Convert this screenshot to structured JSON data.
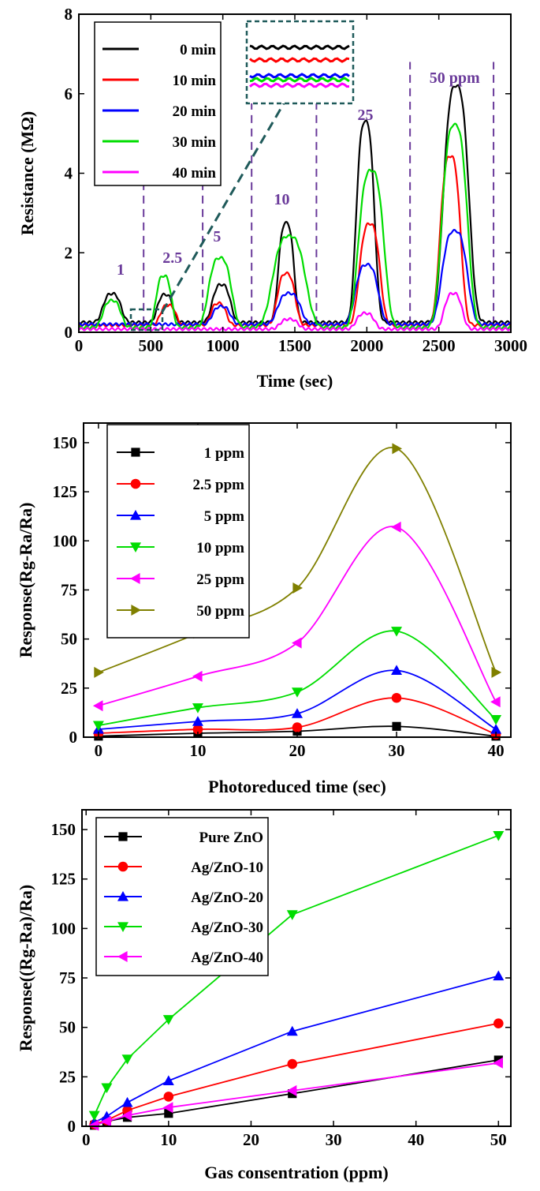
{
  "chart_data": [
    {
      "type": "line",
      "xlabel": "Time (sec)",
      "ylabel": "Resistance (MΩ)",
      "xlim": [
        0,
        3000
      ],
      "ylim": [
        0,
        8
      ],
      "xticks": [
        "0",
        "500",
        "1000",
        "1500",
        "2000",
        "2500",
        "3000"
      ],
      "yticks": [
        "0",
        "2",
        "4",
        "6",
        "8"
      ],
      "legend": "top-left",
      "inset": "zoom of 350–550 sec region",
      "dashed_markers_sec": [
        450,
        860,
        1200,
        1650,
        2300,
        2880
      ],
      "annotations": [
        {
          "text": "1",
          "x": 290
        },
        {
          "text": "2.5",
          "x": 650
        },
        {
          "text": "5",
          "x": 960
        },
        {
          "text": "10",
          "x": 1410
        },
        {
          "text": "25",
          "x": 1990
        },
        {
          "text": "50 ppm",
          "x": 2610
        }
      ],
      "series": [
        {
          "name": "0 min",
          "color": "#000000",
          "baseline": 0.25,
          "peaks": [
            {
              "x": 230,
              "h": 0.72,
              "w": 40
            },
            {
              "x": 600,
              "h": 0.7,
              "w": 30
            },
            {
              "x": 990,
              "h": 0.95,
              "w": 40
            },
            {
              "x": 1440,
              "h": 2.5,
              "w": 30
            },
            {
              "x": 1990,
              "h": 5.05,
              "w": 40
            },
            {
              "x": 2620,
              "h": 5.95,
              "w": 70
            }
          ]
        },
        {
          "name": "10 min",
          "color": "#ff0000",
          "baseline": 0.18,
          "peaks": [
            {
              "x": 620,
              "h": 0.5,
              "w": 30
            },
            {
              "x": 970,
              "h": 0.55,
              "w": 30
            },
            {
              "x": 1440,
              "h": 1.3,
              "w": 40
            },
            {
              "x": 2020,
              "h": 2.55,
              "w": 50
            },
            {
              "x": 2580,
              "h": 4.25,
              "w": 50
            }
          ]
        },
        {
          "name": "20 min",
          "color": "#0000ff",
          "baseline": 0.2,
          "peaks": [
            {
              "x": 990,
              "h": 0.45,
              "w": 40
            },
            {
              "x": 1460,
              "h": 0.78,
              "w": 60
            },
            {
              "x": 2000,
              "h": 1.5,
              "w": 60
            },
            {
              "x": 2610,
              "h": 2.35,
              "w": 70
            }
          ]
        },
        {
          "name": "30 min",
          "color": "#00dd00",
          "baseline": 0.12,
          "peaks": [
            {
              "x": 230,
              "h": 0.68,
              "w": 40
            },
            {
              "x": 590,
              "h": 1.3,
              "w": 30
            },
            {
              "x": 980,
              "h": 1.75,
              "w": 60
            },
            {
              "x": 1460,
              "h": 2.3,
              "w": 100
            },
            {
              "x": 2030,
              "h": 3.95,
              "w": 70
            },
            {
              "x": 2610,
              "h": 5.1,
              "w": 70
            }
          ]
        },
        {
          "name": "40 min",
          "color": "#ff00ff",
          "baseline": 0.08,
          "peaks": [
            {
              "x": 1460,
              "h": 0.25,
              "w": 40
            },
            {
              "x": 1990,
              "h": 0.4,
              "w": 40
            },
            {
              "x": 2600,
              "h": 0.9,
              "w": 40
            }
          ]
        }
      ]
    },
    {
      "type": "line",
      "xlabel": "Photoreduced time (sec)",
      "ylabel": "Response(Rg-Ra/Ra)",
      "xlim": [
        -1.5,
        41.5
      ],
      "ylim": [
        0,
        160
      ],
      "x": [
        0,
        10,
        20,
        30,
        40
      ],
      "xticks": [
        "0",
        "10",
        "20",
        "30",
        "40"
      ],
      "yticks": [
        "0",
        "25",
        "50",
        "75",
        "100",
        "125",
        "150"
      ],
      "legend": "top-left",
      "series": [
        {
          "name": "1 ppm",
          "color": "#000000",
          "marker": "square",
          "values": [
            0.5,
            2,
            3,
            5.5,
            0.5
          ]
        },
        {
          "name": "2.5 ppm",
          "color": "#ff0000",
          "marker": "circle",
          "values": [
            2,
            4,
            5,
            20,
            1.5
          ]
        },
        {
          "name": "5 ppm",
          "color": "#0000ff",
          "marker": "triangle-up",
          "values": [
            4,
            8,
            12,
            34,
            4
          ]
        },
        {
          "name": "10 ppm",
          "color": "#00dd00",
          "marker": "triangle-down",
          "values": [
            6,
            15,
            23,
            54,
            9
          ]
        },
        {
          "name": "25 ppm",
          "color": "#ff00ff",
          "marker": "triangle-left",
          "values": [
            16,
            31,
            48,
            107,
            18
          ]
        },
        {
          "name": "50 ppm",
          "color": "#808000",
          "marker": "triangle-right",
          "values": [
            33,
            53,
            76,
            147,
            33
          ]
        }
      ]
    },
    {
      "type": "line",
      "xlabel": "Gas consentration (ppm)",
      "ylabel": "Response((Rg-Ra)/Ra)",
      "xlim": [
        -0.5,
        51.5
      ],
      "ylim": [
        0,
        160
      ],
      "x": [
        1,
        2.5,
        5,
        10,
        25,
        50
      ],
      "xticks": [
        "0",
        "10",
        "20",
        "30",
        "40",
        "50"
      ],
      "yticks": [
        "0",
        "25",
        "50",
        "75",
        "100",
        "125",
        "150"
      ],
      "legend": "top-left",
      "series": [
        {
          "name": "Pure ZnO",
          "color": "#000000",
          "marker": "square",
          "values": [
            0.5,
            2.5,
            4.5,
            6.5,
            16.5,
            33.5
          ]
        },
        {
          "name": "Ag/ZnO-10",
          "color": "#ff0000",
          "marker": "circle",
          "values": [
            1,
            3,
            8,
            15,
            31.5,
            52
          ]
        },
        {
          "name": "Ag/ZnO-20",
          "color": "#0000ff",
          "marker": "triangle-up",
          "values": [
            2,
            5,
            12,
            23,
            48,
            76
          ]
        },
        {
          "name": "Ag/ZnO-30",
          "color": "#00dd00",
          "marker": "triangle-down",
          "values": [
            5.5,
            19.5,
            34,
            54,
            107,
            147
          ]
        },
        {
          "name": "Ag/ZnO-40",
          "color": "#ff00ff",
          "marker": "triangle-left",
          "values": [
            0.5,
            2.5,
            5.5,
            9.5,
            18,
            32
          ]
        }
      ]
    }
  ]
}
